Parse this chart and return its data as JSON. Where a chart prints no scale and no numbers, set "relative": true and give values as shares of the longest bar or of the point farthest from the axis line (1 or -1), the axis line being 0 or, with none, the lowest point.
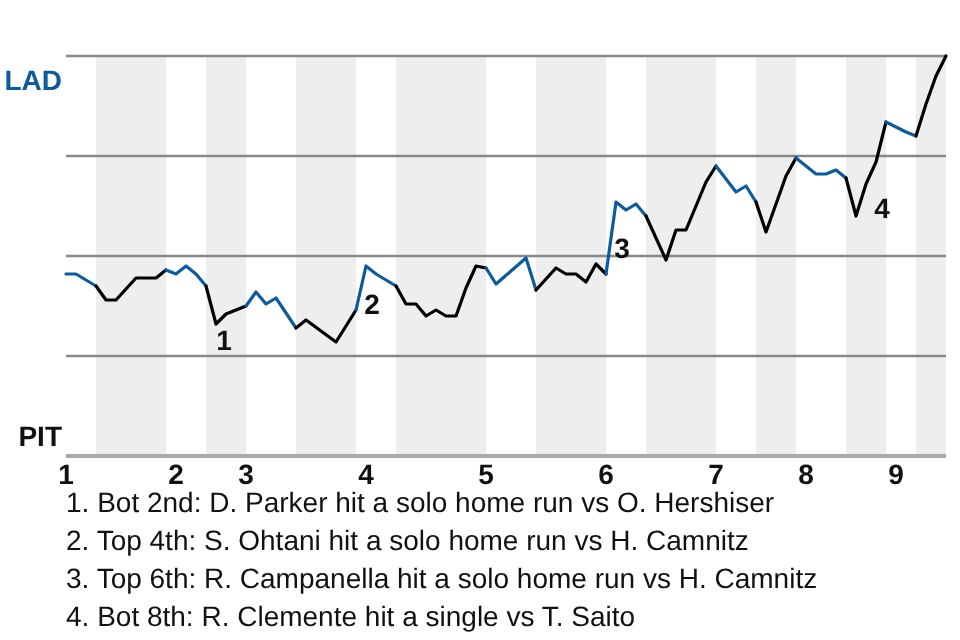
{
  "chart_data": {
    "type": "line",
    "relative": true,
    "categories": [
      "1",
      null,
      null,
      null,
      null,
      null,
      null,
      null,
      null,
      null,
      null,
      "2",
      null,
      null,
      null,
      null,
      null,
      null,
      "3",
      null,
      null,
      null,
      null,
      null,
      null,
      null,
      null,
      null,
      null,
      null,
      "4",
      null,
      null,
      null,
      null,
      null,
      null,
      null,
      null,
      null,
      null,
      null,
      "5",
      null,
      null,
      null,
      null,
      null,
      null,
      null,
      null,
      null,
      null,
      null,
      "6",
      null,
      null,
      null,
      null,
      null,
      null,
      null,
      null,
      null,
      null,
      "7",
      null,
      null,
      null,
      null,
      null,
      null,
      null,
      null,
      "8",
      null,
      null,
      null,
      null,
      null,
      null,
      null,
      null,
      "9",
      null,
      null,
      null,
      null,
      null
    ],
    "grid": true,
    "marker": "none",
    "line_style": "solid",
    "series": [
      {
        "color": "#0b5c9e",
        "values": [
          0.455,
          0.455,
          null,
          0.425,
          null,
          null,
          null,
          null,
          null,
          null,
          null,
          null,
          null,
          null,
          null,
          null,
          null,
          null,
          null,
          null,
          null,
          null,
          null,
          null,
          null,
          null,
          null,
          null,
          null,
          null,
          null,
          null,
          null,
          null,
          null,
          null,
          null,
          null,
          null,
          null,
          null,
          null,
          null,
          null,
          null,
          null,
          null,
          null,
          null,
          null,
          null,
          null,
          null,
          null,
          null,
          null,
          null,
          null,
          null,
          null,
          null,
          null,
          null,
          null,
          null,
          null,
          null,
          null,
          null,
          null,
          null,
          null,
          null,
          null,
          null,
          null,
          null,
          null,
          null,
          null,
          null,
          null,
          null,
          null,
          null,
          null,
          null,
          null,
          null
        ]
      },
      {
        "color": "#000000",
        "values": [
          null,
          null,
          null,
          0.425,
          0.39,
          0.39,
          null,
          0.445,
          null,
          0.445,
          0.465,
          null,
          null,
          null,
          null,
          null,
          null,
          null,
          null,
          null,
          null,
          null,
          null,
          null,
          null,
          null,
          null,
          null,
          null,
          null,
          null,
          null,
          null,
          null,
          null,
          null,
          null,
          null,
          null,
          null,
          null,
          null,
          null,
          null,
          null,
          null,
          null,
          null,
          null,
          null,
          null,
          null,
          null,
          null,
          null,
          null,
          null,
          null,
          null,
          null,
          null,
          null,
          null,
          null,
          null,
          null,
          null,
          null,
          null,
          null,
          null,
          null,
          null,
          null,
          null,
          null,
          null,
          null,
          null,
          null,
          null,
          null,
          null,
          null,
          null,
          null,
          null,
          null,
          null
        ]
      },
      {
        "color": "#0b5c9e",
        "values": [
          null,
          null,
          null,
          null,
          null,
          null,
          null,
          null,
          null,
          null,
          0.465,
          0.455,
          0.475,
          0.455,
          0.425,
          null,
          null,
          null,
          null,
          null,
          null,
          null,
          null,
          null,
          null,
          null,
          null,
          null,
          null,
          null,
          null,
          null,
          null,
          null,
          null,
          null,
          null,
          null,
          null,
          null,
          null,
          null,
          null,
          null,
          null,
          null,
          null,
          null,
          null,
          null,
          null,
          null,
          null,
          null,
          null,
          null,
          null,
          null,
          null,
          null,
          null,
          null,
          null,
          null,
          null,
          null,
          null,
          null,
          null,
          null,
          null,
          null,
          null,
          null,
          null,
          null,
          null,
          null,
          null,
          null,
          null,
          null,
          null,
          null,
          null,
          null,
          null,
          null,
          null
        ]
      },
      {
        "color": "#000000",
        "values": [
          null,
          null,
          null,
          null,
          null,
          null,
          null,
          null,
          null,
          null,
          null,
          null,
          null,
          null,
          0.425,
          0.33,
          0.355,
          null,
          0.375,
          null,
          null,
          null,
          null,
          null,
          null,
          null,
          null,
          null,
          null,
          null,
          null,
          null,
          null,
          null,
          null,
          null,
          null,
          null,
          null,
          null,
          null,
          null,
          null,
          null,
          null,
          null,
          null,
          null,
          null,
          null,
          null,
          null,
          null,
          null,
          null,
          null,
          null,
          null,
          null,
          null,
          null,
          null,
          null,
          null,
          null,
          null,
          null,
          null,
          null,
          null,
          null,
          null,
          null,
          null,
          null,
          null,
          null,
          null,
          null,
          null,
          null,
          null,
          null,
          null,
          null,
          null,
          null,
          null,
          null
        ]
      },
      {
        "color": "#0b5c9e",
        "values": [
          null,
          null,
          null,
          null,
          null,
          null,
          null,
          null,
          null,
          null,
          null,
          null,
          null,
          null,
          null,
          null,
          null,
          null,
          0.375,
          0.41,
          0.38,
          0.395,
          null,
          0.32,
          null,
          null,
          null,
          null,
          null,
          null,
          null,
          null,
          null,
          null,
          null,
          null,
          null,
          null,
          null,
          null,
          null,
          null,
          null,
          null,
          null,
          null,
          null,
          null,
          null,
          null,
          null,
          null,
          null,
          null,
          null,
          null,
          null,
          null,
          null,
          null,
          null,
          null,
          null,
          null,
          null,
          null,
          null,
          null,
          null,
          null,
          null,
          null,
          null,
          null,
          null,
          null,
          null,
          null,
          null,
          null,
          null,
          null,
          null,
          null,
          null,
          null,
          null,
          null,
          null
        ]
      },
      {
        "color": "#000000",
        "values": [
          null,
          null,
          null,
          null,
          null,
          null,
          null,
          null,
          null,
          null,
          null,
          null,
          null,
          null,
          null,
          null,
          null,
          null,
          null,
          null,
          null,
          null,
          null,
          0.32,
          0.34,
          null,
          null,
          0.285,
          null,
          0.365,
          null,
          null,
          null,
          null,
          null,
          null,
          null,
          null,
          null,
          null,
          null,
          null,
          null,
          null,
          null,
          null,
          null,
          null,
          null,
          null,
          null,
          null,
          null,
          null,
          null,
          null,
          null,
          null,
          null,
          null,
          null,
          null,
          null,
          null,
          null,
          null,
          null,
          null,
          null,
          null,
          null,
          null,
          null,
          null,
          null,
          null,
          null,
          null,
          null,
          null,
          null,
          null,
          null,
          null,
          null,
          null,
          null,
          null,
          null
        ]
      },
      {
        "color": "#0b5c9e",
        "values": [
          null,
          null,
          null,
          null,
          null,
          null,
          null,
          null,
          null,
          null,
          null,
          null,
          null,
          null,
          null,
          null,
          null,
          null,
          null,
          null,
          null,
          null,
          null,
          null,
          null,
          null,
          null,
          null,
          null,
          0.365,
          0.475,
          0.455,
          null,
          0.425,
          null,
          null,
          null,
          null,
          null,
          null,
          null,
          null,
          null,
          null,
          null,
          null,
          null,
          null,
          null,
          null,
          null,
          null,
          null,
          null,
          null,
          null,
          null,
          null,
          null,
          null,
          null,
          null,
          null,
          null,
          null,
          null,
          null,
          null,
          null,
          null,
          null,
          null,
          null,
          null,
          null,
          null,
          null,
          null,
          null,
          null,
          null,
          null,
          null,
          null,
          null,
          null,
          null,
          null,
          null
        ]
      },
      {
        "color": "#000000",
        "values": [
          null,
          null,
          null,
          null,
          null,
          null,
          null,
          null,
          null,
          null,
          null,
          null,
          null,
          null,
          null,
          null,
          null,
          null,
          null,
          null,
          null,
          null,
          null,
          null,
          null,
          null,
          null,
          null,
          null,
          null,
          null,
          null,
          null,
          0.425,
          0.38,
          0.38,
          0.35,
          0.365,
          0.35,
          0.35,
          0.42,
          0.475,
          0.47,
          null,
          null,
          null,
          null,
          null,
          null,
          null,
          null,
          null,
          null,
          null,
          null,
          null,
          null,
          null,
          null,
          null,
          null,
          null,
          null,
          null,
          null,
          null,
          null,
          null,
          null,
          null,
          null,
          null,
          null,
          null,
          null,
          null,
          null,
          null,
          null,
          null,
          null,
          null,
          null,
          null,
          null,
          null,
          null,
          null,
          null
        ]
      },
      {
        "color": "#0b5c9e",
        "values": [
          null,
          null,
          null,
          null,
          null,
          null,
          null,
          null,
          null,
          null,
          null,
          null,
          null,
          null,
          null,
          null,
          null,
          null,
          null,
          null,
          null,
          null,
          null,
          null,
          null,
          null,
          null,
          null,
          null,
          null,
          null,
          null,
          null,
          null,
          null,
          null,
          null,
          null,
          null,
          null,
          null,
          null,
          0.47,
          0.43,
          null,
          null,
          0.495,
          0.415,
          null,
          null,
          null,
          null,
          null,
          null,
          null,
          null,
          null,
          null,
          null,
          null,
          null,
          null,
          null,
          null,
          null,
          null,
          null,
          null,
          null,
          null,
          null,
          null,
          null,
          null,
          null,
          null,
          null,
          null,
          null,
          null,
          null,
          null,
          null,
          null,
          null,
          null,
          null,
          null,
          null
        ]
      },
      {
        "color": "#000000",
        "values": [
          null,
          null,
          null,
          null,
          null,
          null,
          null,
          null,
          null,
          null,
          null,
          null,
          null,
          null,
          null,
          null,
          null,
          null,
          null,
          null,
          null,
          null,
          null,
          null,
          null,
          null,
          null,
          null,
          null,
          null,
          null,
          null,
          null,
          null,
          null,
          null,
          null,
          null,
          null,
          null,
          null,
          null,
          null,
          null,
          null,
          null,
          null,
          0.415,
          null,
          0.47,
          0.455,
          0.455,
          0.435,
          0.48,
          0.455,
          null,
          null,
          null,
          null,
          null,
          null,
          null,
          null,
          null,
          null,
          null,
          null,
          null,
          null,
          null,
          null,
          null,
          null,
          null,
          null,
          null,
          null,
          null,
          null,
          null,
          null,
          null,
          null,
          null,
          null,
          null,
          null,
          null,
          null
        ]
      },
      {
        "color": "#0b5c9e",
        "values": [
          null,
          null,
          null,
          null,
          null,
          null,
          null,
          null,
          null,
          null,
          null,
          null,
          null,
          null,
          null,
          null,
          null,
          null,
          null,
          null,
          null,
          null,
          null,
          null,
          null,
          null,
          null,
          null,
          null,
          null,
          null,
          null,
          null,
          null,
          null,
          null,
          null,
          null,
          null,
          null,
          null,
          null,
          null,
          null,
          null,
          null,
          null,
          null,
          null,
          null,
          null,
          null,
          null,
          null,
          0.455,
          0.635,
          0.615,
          0.63,
          0.6,
          null,
          null,
          null,
          null,
          null,
          null,
          null,
          null,
          null,
          null,
          null,
          null,
          null,
          null,
          null,
          null,
          null,
          null,
          null,
          null,
          null,
          null,
          null,
          null,
          null,
          null,
          null,
          null,
          null,
          null
        ]
      },
      {
        "color": "#000000",
        "values": [
          null,
          null,
          null,
          null,
          null,
          null,
          null,
          null,
          null,
          null,
          null,
          null,
          null,
          null,
          null,
          null,
          null,
          null,
          null,
          null,
          null,
          null,
          null,
          null,
          null,
          null,
          null,
          null,
          null,
          null,
          null,
          null,
          null,
          null,
          null,
          null,
          null,
          null,
          null,
          null,
          null,
          null,
          null,
          null,
          null,
          null,
          null,
          null,
          null,
          null,
          null,
          null,
          null,
          null,
          null,
          null,
          null,
          null,
          0.6,
          null,
          0.49,
          0.565,
          0.565,
          null,
          0.685,
          0.725,
          null,
          null,
          null,
          null,
          null,
          null,
          null,
          null,
          null,
          null,
          null,
          null,
          null,
          null,
          null,
          null,
          null,
          null,
          null,
          null,
          null,
          null,
          null
        ]
      },
      {
        "color": "#0b5c9e",
        "values": [
          null,
          null,
          null,
          null,
          null,
          null,
          null,
          null,
          null,
          null,
          null,
          null,
          null,
          null,
          null,
          null,
          null,
          null,
          null,
          null,
          null,
          null,
          null,
          null,
          null,
          null,
          null,
          null,
          null,
          null,
          null,
          null,
          null,
          null,
          null,
          null,
          null,
          null,
          null,
          null,
          null,
          null,
          null,
          null,
          null,
          null,
          null,
          null,
          null,
          null,
          null,
          null,
          null,
          null,
          null,
          null,
          null,
          null,
          null,
          null,
          null,
          null,
          null,
          null,
          null,
          0.725,
          null,
          0.66,
          0.675,
          0.635,
          null,
          null,
          null,
          null,
          null,
          null,
          null,
          null,
          null,
          null,
          null,
          null,
          null,
          null,
          null,
          null,
          null,
          null,
          null
        ]
      },
      {
        "color": "#000000",
        "values": [
          null,
          null,
          null,
          null,
          null,
          null,
          null,
          null,
          null,
          null,
          null,
          null,
          null,
          null,
          null,
          null,
          null,
          null,
          null,
          null,
          null,
          null,
          null,
          null,
          null,
          null,
          null,
          null,
          null,
          null,
          null,
          null,
          null,
          null,
          null,
          null,
          null,
          null,
          null,
          null,
          null,
          null,
          null,
          null,
          null,
          null,
          null,
          null,
          null,
          null,
          null,
          null,
          null,
          null,
          null,
          null,
          null,
          null,
          null,
          null,
          null,
          null,
          null,
          null,
          null,
          null,
          null,
          null,
          null,
          0.635,
          0.56,
          null,
          0.7,
          0.745,
          null,
          null,
          null,
          null,
          null,
          null,
          null,
          null,
          null,
          null,
          null,
          null,
          null,
          null,
          null
        ]
      },
      {
        "color": "#0b5c9e",
        "values": [
          null,
          null,
          null,
          null,
          null,
          null,
          null,
          null,
          null,
          null,
          null,
          null,
          null,
          null,
          null,
          null,
          null,
          null,
          null,
          null,
          null,
          null,
          null,
          null,
          null,
          null,
          null,
          null,
          null,
          null,
          null,
          null,
          null,
          null,
          null,
          null,
          null,
          null,
          null,
          null,
          null,
          null,
          null,
          null,
          null,
          null,
          null,
          null,
          null,
          null,
          null,
          null,
          null,
          null,
          null,
          null,
          null,
          null,
          null,
          null,
          null,
          null,
          null,
          null,
          null,
          null,
          null,
          null,
          null,
          null,
          null,
          null,
          null,
          0.745,
          null,
          0.705,
          0.705,
          0.715,
          0.695,
          null,
          null,
          null,
          null,
          null,
          null,
          null,
          null,
          null,
          null
        ]
      },
      {
        "color": "#000000",
        "values": [
          null,
          null,
          null,
          null,
          null,
          null,
          null,
          null,
          null,
          null,
          null,
          null,
          null,
          null,
          null,
          null,
          null,
          null,
          null,
          null,
          null,
          null,
          null,
          null,
          null,
          null,
          null,
          null,
          null,
          null,
          null,
          null,
          null,
          null,
          null,
          null,
          null,
          null,
          null,
          null,
          null,
          null,
          null,
          null,
          null,
          null,
          null,
          null,
          null,
          null,
          null,
          null,
          null,
          null,
          null,
          null,
          null,
          null,
          null,
          null,
          null,
          null,
          null,
          null,
          null,
          null,
          null,
          null,
          null,
          null,
          null,
          null,
          null,
          null,
          null,
          null,
          null,
          null,
          0.695,
          0.6,
          0.68,
          0.735,
          0.835,
          null,
          null,
          null,
          null,
          null,
          null
        ]
      },
      {
        "color": "#0b5c9e",
        "values": [
          null,
          null,
          null,
          null,
          null,
          null,
          null,
          null,
          null,
          null,
          null,
          null,
          null,
          null,
          null,
          null,
          null,
          null,
          null,
          null,
          null,
          null,
          null,
          null,
          null,
          null,
          null,
          null,
          null,
          null,
          null,
          null,
          null,
          null,
          null,
          null,
          null,
          null,
          null,
          null,
          null,
          null,
          null,
          null,
          null,
          null,
          null,
          null,
          null,
          null,
          null,
          null,
          null,
          null,
          null,
          null,
          null,
          null,
          null,
          null,
          null,
          null,
          null,
          null,
          null,
          null,
          null,
          null,
          null,
          null,
          null,
          null,
          null,
          null,
          null,
          null,
          null,
          null,
          null,
          null,
          null,
          null,
          0.835,
          null,
          0.81,
          0.8,
          null,
          null,
          null
        ]
      },
      {
        "color": "#000000",
        "values": [
          null,
          null,
          null,
          null,
          null,
          null,
          null,
          null,
          null,
          null,
          null,
          null,
          null,
          null,
          null,
          null,
          null,
          null,
          null,
          null,
          null,
          null,
          null,
          null,
          null,
          null,
          null,
          null,
          null,
          null,
          null,
          null,
          null,
          null,
          null,
          null,
          null,
          null,
          null,
          null,
          null,
          null,
          null,
          null,
          null,
          null,
          null,
          null,
          null,
          null,
          null,
          null,
          null,
          null,
          null,
          null,
          null,
          null,
          null,
          null,
          null,
          null,
          null,
          null,
          null,
          null,
          null,
          null,
          null,
          null,
          null,
          null,
          null,
          null,
          null,
          null,
          null,
          null,
          null,
          null,
          null,
          null,
          null,
          null,
          null,
          0.8,
          0.88,
          0.95,
          1
        ]
      }
    ],
    "annotations": [
      "LAD",
      "PIT",
      "1",
      "2",
      "3",
      "4",
      "1. Bot 2nd: D. Parker hit a solo home run vs O. Hershiser",
      "2. Top 4th: S. Ohtani hit a solo home run vs H. Camnitz",
      "3. Top 6th: R. Campanella hit a solo home run vs H. Camnitz",
      "4. Bot 8th: R. Clemente hit a single vs T. Saito"
    ]
  }
}
